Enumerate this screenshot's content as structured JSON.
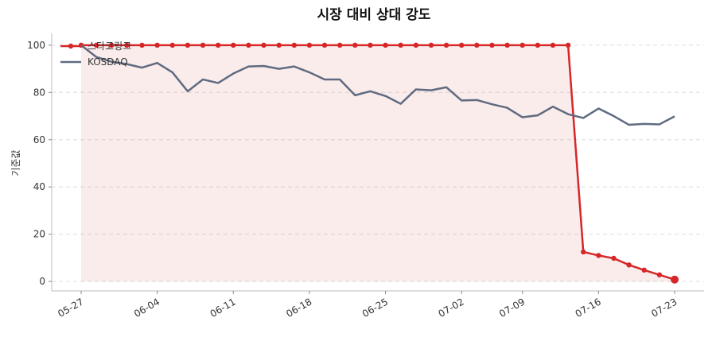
{
  "chart_data": {
    "type": "line",
    "title": "시장 대비 상대 강도",
    "y_label": "기준값",
    "categories": [
      "05-27",
      null,
      null,
      null,
      null,
      "06-04",
      null,
      null,
      null,
      null,
      "06-11",
      null,
      null,
      null,
      null,
      "06-18",
      null,
      null,
      null,
      null,
      "06-25",
      null,
      null,
      null,
      null,
      "07-02",
      null,
      null,
      null,
      "07-09",
      null,
      null,
      null,
      null,
      "07-16",
      null,
      null,
      null,
      null,
      "07-23"
    ],
    "series": [
      {
        "name": "스타코링크",
        "color": "#d62728",
        "markers": true,
        "area": true,
        "values": [
          100,
          100,
          100,
          100,
          100,
          100,
          100,
          100,
          100,
          100,
          100,
          100,
          100,
          100,
          100,
          100,
          100,
          100,
          100,
          100,
          100,
          100,
          100,
          100,
          100,
          100,
          100,
          100,
          100,
          100,
          100,
          100,
          100,
          12.5,
          11,
          9.8,
          7,
          4.8,
          2.8,
          0.8
        ]
      },
      {
        "name": "KOSDAQ",
        "color": "#5f6b80",
        "markers": false,
        "area": false,
        "values": [
          100,
          95,
          93,
          92,
          90.5,
          92.5,
          88.5,
          80.5,
          85.5,
          84,
          88,
          91,
          91.2,
          90,
          91,
          88.5,
          85.5,
          85.5,
          78.8,
          80.5,
          78.5,
          75.2,
          81.3,
          80.9,
          82.2,
          76.6,
          76.8,
          75,
          73.5,
          69.5,
          70.3,
          74,
          70.8,
          69.2,
          73.2,
          70,
          66.3,
          66.7,
          66.5,
          69.9
        ]
      }
    ],
    "ylim": [
      -4,
      105
    ],
    "yticks": [
      0,
      20,
      40,
      60,
      80,
      100
    ],
    "grid": true,
    "legend": "upper-left"
  }
}
